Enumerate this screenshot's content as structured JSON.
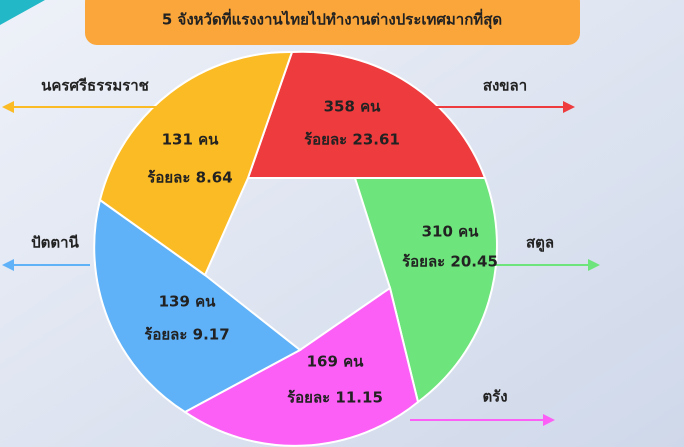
{
  "title": "5 จังหวัดที่แรงงานไทยไปทำงานต่างประเทศมากที่สุด",
  "segments": [
    {
      "name": "สงขลา",
      "count": "358 คน",
      "percent": "ร้อยละ 23.61"
    },
    {
      "name": "สตูล",
      "count": "310 คน",
      "percent": "ร้อยละ 20.45"
    },
    {
      "name": "ตรัง",
      "count": "169 คน",
      "percent": "ร้อยละ 11.15"
    },
    {
      "name": "ปัตตานี",
      "count": "139 คน",
      "percent": "ร้อยละ 9.17"
    },
    {
      "name": "นครศรีธรรมราช",
      "count": "131 คน",
      "percent": "ร้อยละ 8.64"
    }
  ]
}
